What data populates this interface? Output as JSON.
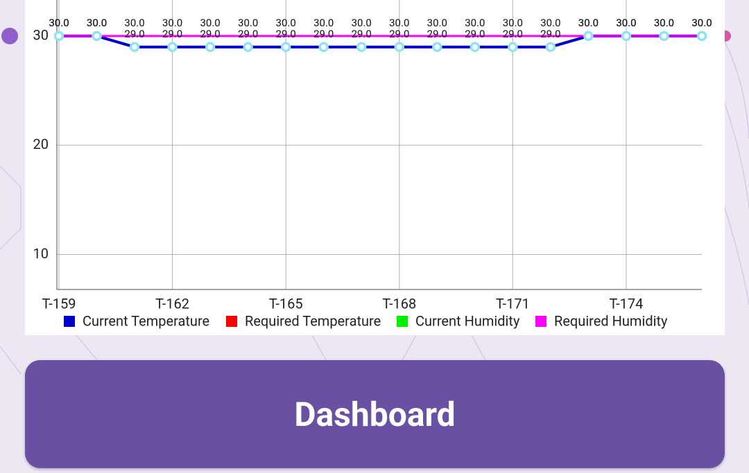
{
  "chart_data": {
    "type": "line",
    "categories": [
      "T-159",
      null,
      null,
      "T-162",
      null,
      null,
      "T-165",
      null,
      null,
      "T-168",
      null,
      null,
      "T-171",
      null,
      null,
      "T-174",
      null,
      null
    ],
    "series": [
      {
        "name": "Current Temperature",
        "color": "#0000cc",
        "marker_color": "#8ee3f5",
        "values": [
          30,
          30,
          29,
          29,
          29,
          29,
          29,
          29,
          29,
          29,
          29,
          29,
          29,
          29,
          30,
          30,
          30,
          30
        ],
        "value_labels": [
          "30.0",
          "30.0",
          "29.0",
          "29.0",
          "29.0",
          "29.0",
          "29.0",
          "29.0",
          "29.0",
          "29.0",
          "29.0",
          "29.0",
          "29.0",
          "29.0",
          "30.0",
          "30.0",
          "30.0",
          "30.0"
        ]
      },
      {
        "name": "Required Temperature",
        "color": "#ff0000",
        "values": [
          30,
          30,
          30,
          30,
          30,
          30,
          30,
          30,
          30,
          30,
          30,
          30,
          30,
          30,
          30,
          30,
          30,
          30
        ]
      },
      {
        "name": "Current Humidity",
        "color": "#00ee00",
        "values": [
          30,
          30,
          30,
          30,
          30,
          30,
          30,
          30,
          30,
          30,
          30,
          30,
          30,
          30,
          30,
          30,
          30,
          30
        ]
      },
      {
        "name": "Required Humidity",
        "color": "#ff00ff",
        "values": [
          30,
          30,
          30,
          30,
          30,
          30,
          30,
          30,
          30,
          30,
          30,
          30,
          30,
          30,
          30,
          30,
          30,
          30
        ],
        "value_labels": [
          "30.0",
          "30.0",
          "30.0",
          "30.0",
          "30.0",
          "30.0",
          "30.0",
          "30.0",
          "30.0",
          "30.0",
          "30.0",
          "30.0",
          "30.0",
          "30.0",
          "30.0",
          "30.0",
          "30.0",
          "30.0"
        ]
      }
    ],
    "ylim": [
      6.8,
      33.3
    ],
    "yticks": [
      10,
      20,
      30
    ],
    "grid": true,
    "legend": "bottom"
  },
  "button": {
    "label": "Dashboard"
  }
}
